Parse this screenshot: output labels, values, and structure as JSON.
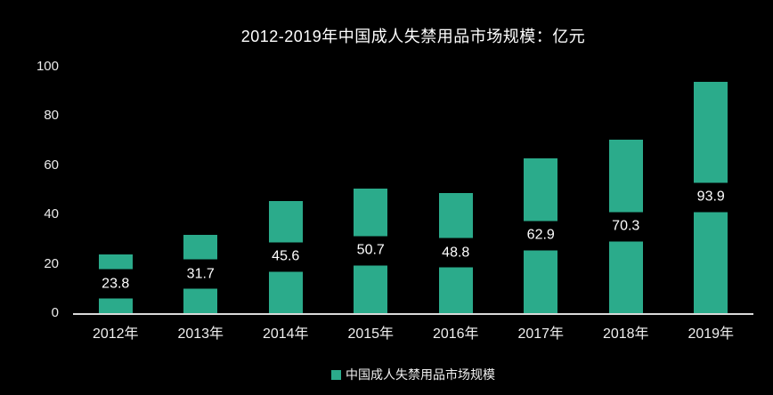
{
  "chart_data": {
    "type": "bar",
    "title": "2012-2019年中国成人失禁用品市场规模：亿元",
    "categories": [
      "2012年",
      "2013年",
      "2014年",
      "2015年",
      "2016年",
      "2017年",
      "2018年",
      "2019年"
    ],
    "values": [
      23.8,
      31.7,
      45.6,
      50.7,
      48.8,
      62.9,
      70.3,
      93.9
    ],
    "value_labels": [
      "23.8",
      "31.7",
      "45.6",
      "50.7",
      "48.8",
      "62.9",
      "70.3",
      "93.9"
    ],
    "series_name": "中国成人失禁用品市场规模",
    "xlabel": "",
    "ylabel": "",
    "ylim": [
      0,
      100
    ],
    "yticks": [
      0,
      20,
      40,
      60,
      80,
      100
    ],
    "grid": false,
    "legend_position": "bottom",
    "colors": {
      "background": "#000000",
      "bar": "#2bab8b",
      "axis_line": "#d9d9d9",
      "title_text": "#ffffff",
      "axis_text": "#ececec",
      "data_label_text": "#ffffff",
      "data_label_band": "#000000"
    }
  }
}
